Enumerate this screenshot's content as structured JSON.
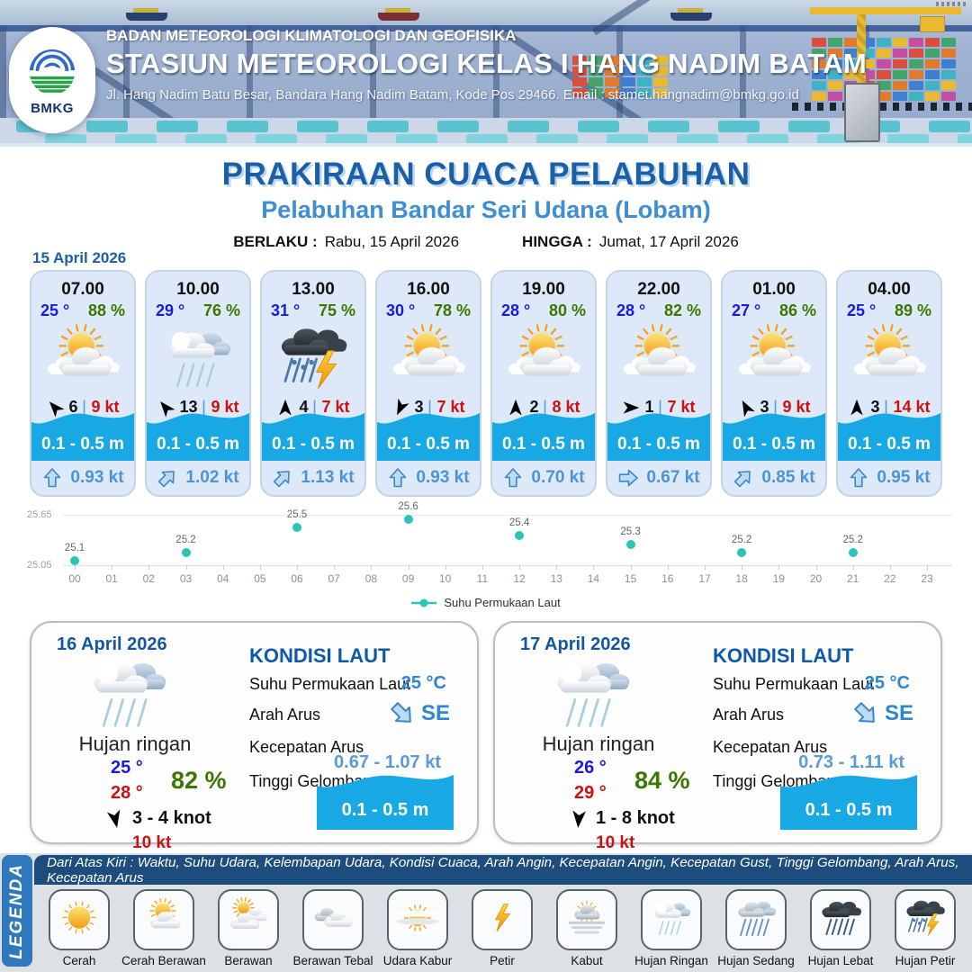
{
  "colors": {
    "accent_blue": "#1b5fa8",
    "subtitle_blue": "#3e8ed6",
    "temperature_blue": "#1a1ae0",
    "humidity_green": "#3c7700",
    "gust_red": "#cc1111",
    "wave_cyan": "#18a8e3",
    "current_blue": "#4d94d6",
    "chart_point_teal": "#2bc4b8",
    "legend_bar_blue": "#2e78bb",
    "note_bar_navy": "#1d4d7c"
  },
  "ui": {
    "separator": "|"
  },
  "header": {
    "logo_text": "BMKG",
    "org": "BADAN METEOROLOGI KLIMATOLOGI DAN GEOFISIKA",
    "station": "STASIUN METEOROLOGI KELAS I HANG NADIM BATAM",
    "address": "Jl. Hang Nadim Batu Besar, Bandara Hang Nadim Batam, Kode Pos 29466. Email : stamet.hangnadim@bmkg.go.id"
  },
  "title": {
    "main": "PRAKIRAAN CUACA PELABUHAN",
    "subtitle": "Pelabuhan Bandar Seri Udana (Lobam)",
    "valid_from_label": "BERLAKU :",
    "valid_from_value": "Rabu, 15 April 2026",
    "valid_to_label": "HINGGA :",
    "valid_to_value": "Jumat, 17 April 2026",
    "forecast_date": "15 April 2026"
  },
  "hourly": [
    {
      "time": "07.00",
      "temp": "25 °",
      "humidity": "88 %",
      "icon": "sun-cloud",
      "wind_dir_deg": 318,
      "wind_speed": "6",
      "gust": "9 kt",
      "wave": "0.1 - 0.5 m",
      "current_dir_deg": 0,
      "current_speed": "0.93 kt"
    },
    {
      "time": "10.00",
      "temp": "29 °",
      "humidity": "76 %",
      "icon": "rain-light",
      "wind_dir_deg": 320,
      "wind_speed": "13",
      "gust": "9 kt",
      "wave": "0.1 - 0.5 m",
      "current_dir_deg": 45,
      "current_speed": "1.02 kt"
    },
    {
      "time": "13.00",
      "temp": "31 °",
      "humidity": "75 %",
      "icon": "storm",
      "wind_dir_deg": 0,
      "wind_speed": "4",
      "gust": "7 kt",
      "wave": "0.1 - 0.5 m",
      "current_dir_deg": 45,
      "current_speed": "1.13 kt"
    },
    {
      "time": "16.00",
      "temp": "30 °",
      "humidity": "78 %",
      "icon": "sun-cloud",
      "wind_dir_deg": 205,
      "wind_speed": "3",
      "gust": "7 kt",
      "wave": "0.1 - 0.5 m",
      "current_dir_deg": 0,
      "current_speed": "0.93 kt"
    },
    {
      "time": "19.00",
      "temp": "28 °",
      "humidity": "80 %",
      "icon": "sun-cloud",
      "wind_dir_deg": 0,
      "wind_speed": "2",
      "gust": "8 kt",
      "wave": "0.1 - 0.5 m",
      "current_dir_deg": 0,
      "current_speed": "0.70 kt"
    },
    {
      "time": "22.00",
      "temp": "28 °",
      "humidity": "82 %",
      "icon": "sun-cloud",
      "wind_dir_deg": 90,
      "wind_speed": "1",
      "gust": "7 kt",
      "wave": "0.1 - 0.5 m",
      "current_dir_deg": 90,
      "current_speed": "0.67 kt"
    },
    {
      "time": "01.00",
      "temp": "27 °",
      "humidity": "86 %",
      "icon": "sun-cloud",
      "wind_dir_deg": 332,
      "wind_speed": "3",
      "gust": "9 kt",
      "wave": "0.1 - 0.5 m",
      "current_dir_deg": 45,
      "current_speed": "0.85 kt"
    },
    {
      "time": "04.00",
      "temp": "25 °",
      "humidity": "89 %",
      "icon": "sun-cloud",
      "wind_dir_deg": 0,
      "wind_speed": "3",
      "gust": "14 kt",
      "wave": "0.1 - 0.5 m",
      "current_dir_deg": 0,
      "current_speed": "0.95 kt"
    }
  ],
  "chart_data": {
    "type": "scatter",
    "title": "",
    "xlabel": "",
    "ylabel": "",
    "series_name": "Suhu Permukaan Laut",
    "x": [
      0,
      3,
      6,
      9,
      12,
      15,
      18,
      21
    ],
    "values": [
      25.1,
      25.2,
      25.5,
      25.6,
      25.4,
      25.3,
      25.2,
      25.2
    ],
    "point_labels": [
      "25.1",
      "25.2",
      "25.5",
      "25.6",
      "25.4",
      "25.3",
      "25.2",
      "25.2"
    ],
    "x_tick_labels": [
      "00",
      "01",
      "02",
      "03",
      "04",
      "05",
      "06",
      "07",
      "08",
      "09",
      "10",
      "11",
      "12",
      "13",
      "14",
      "15",
      "16",
      "17",
      "18",
      "19",
      "20",
      "21",
      "22",
      "23"
    ],
    "y_tick_labels": [
      "25.65",
      "25.05"
    ],
    "xlim": [
      0,
      23
    ],
    "ylim": [
      25.05,
      25.65
    ],
    "grid": true,
    "legend_position": "bottom",
    "legend_label": "Suhu Permukaan Laut",
    "point_color": "#2bc4b8"
  },
  "days": [
    {
      "date": "16 April 2026",
      "icon": "rain-light",
      "condition": "Hujan ringan",
      "temp_min": "25 °",
      "temp_max": "28 °",
      "humidity": "82 %",
      "wind_dir_deg": 168,
      "wind_range": "3  - 4 knot",
      "gust": "10 kt",
      "sea": {
        "heading": "KONDISI LAUT",
        "sst_label": "Suhu Permukaan Laut",
        "sst_value": "25 °C",
        "current_dir_label": "Arah Arus",
        "current_dir_value": "SE",
        "current_dir_deg": 135,
        "current_speed_label": "Kecepatan Arus",
        "current_speed_value": "0.67  - 1.07 kt",
        "wave_label": "Tinggi Gelombang",
        "wave_value": "0.1 - 0.5 m"
      }
    },
    {
      "date": "17 April 2026",
      "icon": "rain-light",
      "condition": "Hujan ringan",
      "temp_min": "26 °",
      "temp_max": "29 °",
      "humidity": "84 %",
      "wind_dir_deg": 184,
      "wind_range": "1  - 8 knot",
      "gust": "10 kt",
      "sea": {
        "heading": "KONDISI LAUT",
        "sst_label": "Suhu Permukaan Laut",
        "sst_value": "25 °C",
        "current_dir_label": "Arah Arus",
        "current_dir_value": "SE",
        "current_dir_deg": 135,
        "current_speed_label": "Kecepatan Arus",
        "current_speed_value": "0.73 - 1.11 kt",
        "wave_label": "Tinggi Gelombang",
        "wave_value": "0.1 - 0.5 m"
      }
    }
  ],
  "legend": {
    "title": "LEGENDA",
    "note": "Dari Atas Kiri : Waktu, Suhu Udara, Kelembapan Udara, Kondisi Cuaca, Arah Angin, Kecepatan Angin, Kecepatan Gust, Tinggi Gelombang, Arah Arus, Kecepatan Arus",
    "items": [
      {
        "label": "Cerah",
        "icon": "sun"
      },
      {
        "label": "Cerah Berawan",
        "icon": "sun-cloud"
      },
      {
        "label": "Berawan",
        "icon": "cloud-sun"
      },
      {
        "label": "Berawan Tebal",
        "icon": "clouds"
      },
      {
        "label": "Udara Kabur",
        "icon": "haze"
      },
      {
        "label": "Petir",
        "icon": "lightning"
      },
      {
        "label": "Kabut",
        "icon": "fog"
      },
      {
        "label": "Hujan Ringan",
        "icon": "rain-light"
      },
      {
        "label": "Hujan Sedang",
        "icon": "rain-medium"
      },
      {
        "label": "Hujan Lebat",
        "icon": "rain-heavy"
      },
      {
        "label": "Hujan Petir",
        "icon": "storm"
      }
    ]
  }
}
